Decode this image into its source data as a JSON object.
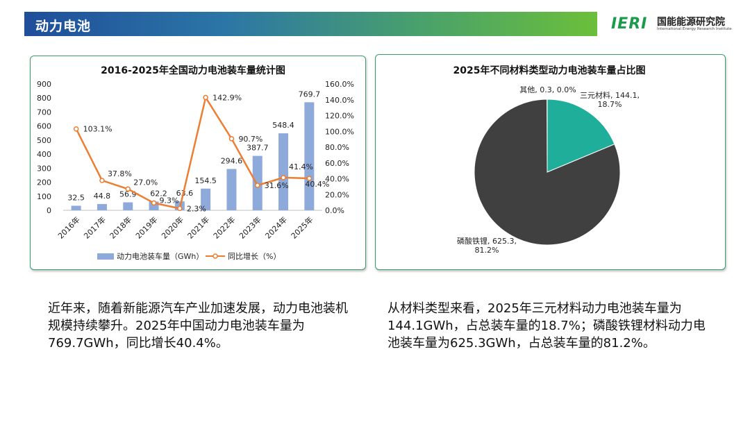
{
  "header": {
    "title": "动力电池",
    "logo_mark": "IERI",
    "logo_name": "国能能源研究院",
    "logo_subtitle": "International Energy Research Institute"
  },
  "colors": {
    "bar": "#8eaadb",
    "line": "#ed7d31",
    "pie_ternary": "#1fae9a",
    "pie_lfp": "#404040",
    "panel_border": "#3a9b6f"
  },
  "chart_data": [
    {
      "type": "bar",
      "title": "2016-2025年全国动力电池装车量统计图",
      "categories": [
        "2016年",
        "2017年",
        "2018年",
        "2019年",
        "2020年",
        "2021年",
        "2022年",
        "2023年",
        "2024年",
        "2025年"
      ],
      "series": [
        {
          "name": "动力电池装车量（GWh）",
          "type": "bar",
          "axis": "left",
          "values": [
            32.5,
            44.8,
            56.9,
            62.2,
            63.6,
            154.5,
            294.6,
            387.7,
            548.4,
            769.7
          ],
          "labels": [
            "32.5",
            "44.8",
            "56.9",
            "62.2",
            "63.6",
            "154.5",
            "294.6",
            "387.7",
            "548.4",
            "769.7"
          ]
        },
        {
          "name": "同比增长（%）",
          "type": "line",
          "axis": "right",
          "values": [
            103.1,
            37.8,
            27.0,
            9.3,
            2.3,
            142.9,
            90.7,
            31.6,
            41.4,
            40.4
          ],
          "labels": [
            "103.1%",
            "37.8%",
            "27.0%",
            "9.3%",
            "2.3%",
            "142.9%",
            "90.7%",
            "31.6%",
            "41.4%",
            "40.4%"
          ]
        }
      ],
      "ylim": [
        0,
        900
      ],
      "yticks": [
        "0",
        "100",
        "200",
        "300",
        "400",
        "500",
        "600",
        "700",
        "800",
        "900"
      ],
      "y2lim": [
        0,
        160
      ],
      "y2ticks": [
        "0.0%",
        "20.0%",
        "40.0%",
        "60.0%",
        "80.0%",
        "100.0%",
        "120.0%",
        "140.0%",
        "160.0%"
      ],
      "grid": false,
      "legend": "bottom"
    },
    {
      "type": "pie",
      "title": "2025年不同材料类型动力电池装车量占比图",
      "slices": [
        {
          "name": "三元材料",
          "value": 144.1,
          "percent": 18.7,
          "label_line1": "三元材料, 144.1,",
          "label_line2": "18.7%"
        },
        {
          "name": "磷酸铁锂",
          "value": 625.3,
          "percent": 81.2,
          "label_line1": "磷酸铁锂, 625.3,",
          "label_line2": "81.2%"
        },
        {
          "name": "其他",
          "value": 0.3,
          "percent": 0.0,
          "label_line1": "其他, 0.3, 0.0%",
          "label_line2": ""
        }
      ]
    }
  ],
  "descriptions": {
    "left": "近年来，随着新能源汽车产业加速发展，动力电池装机规模持续攀升。2025年中国动力电池装车量为769.7GWh，同比增长40.4%。",
    "right": "从材料类型来看，2025年三元材料动力电池装车量为144.1GWh，占总装车量的18.7%；磷酸铁锂材料动力电池装车量为625.3GWh，占总装车量的81.2%。"
  }
}
